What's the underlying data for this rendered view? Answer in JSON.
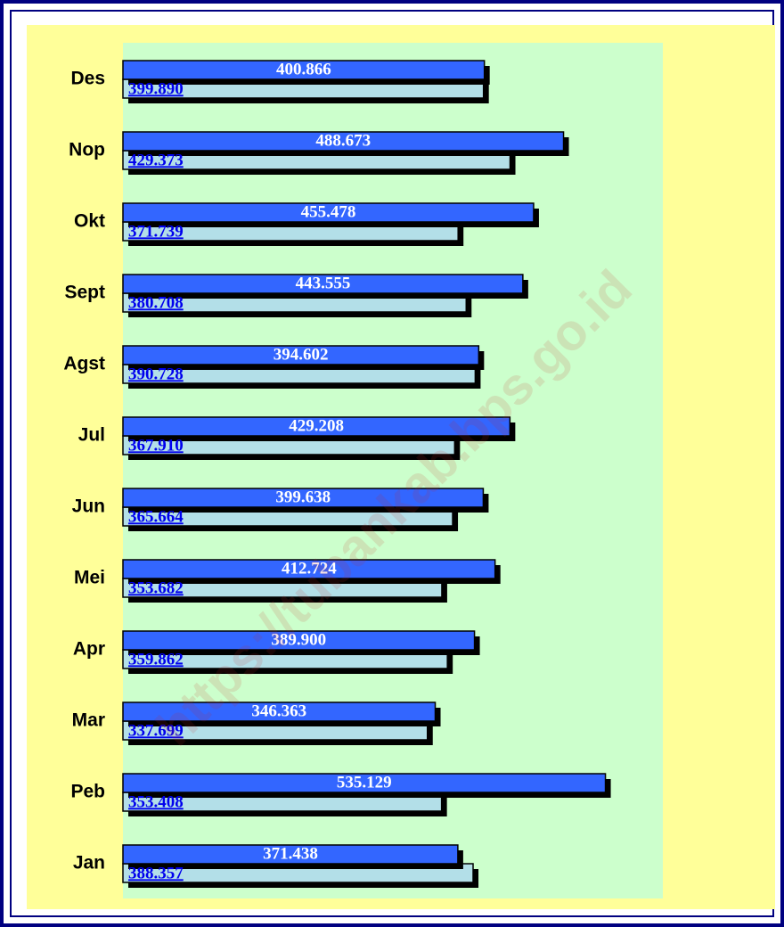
{
  "chart_data": {
    "type": "hbar",
    "categories": [
      "Des",
      "Nop",
      "Okt",
      "Sept",
      "Agst",
      "Jul",
      "Jun",
      "Mei",
      "Apr",
      "Mar",
      "Peb",
      "Jan"
    ],
    "series": [
      {
        "color": "#3366ff",
        "values": [
          400.866,
          488.673,
          455.478,
          443.555,
          394.602,
          429.208,
          399.638,
          412.724,
          389.9,
          346.363,
          535.129,
          371.438
        ],
        "value_labels": [
          "400.866",
          "488.673",
          "455.478",
          "443.555",
          "394.602",
          "429.208",
          "399.638",
          "412.724",
          "389.900",
          "346.363",
          "535.129",
          "371.438"
        ]
      },
      {
        "color": "#b3dfe8",
        "values": [
          399.89,
          429.373,
          371.739,
          380.708,
          390.728,
          367.91,
          365.664,
          353.682,
          359.862,
          337.699,
          353.408,
          388.357
        ],
        "value_labels": [
          "399.890",
          "429.373",
          "371.739",
          "380.708",
          "390.728",
          "367.910",
          "365.664",
          "353.682",
          "359.862",
          "337.699",
          "353.408",
          "388.357"
        ]
      }
    ],
    "watermark": "https://tubankab.bps.go.id"
  }
}
